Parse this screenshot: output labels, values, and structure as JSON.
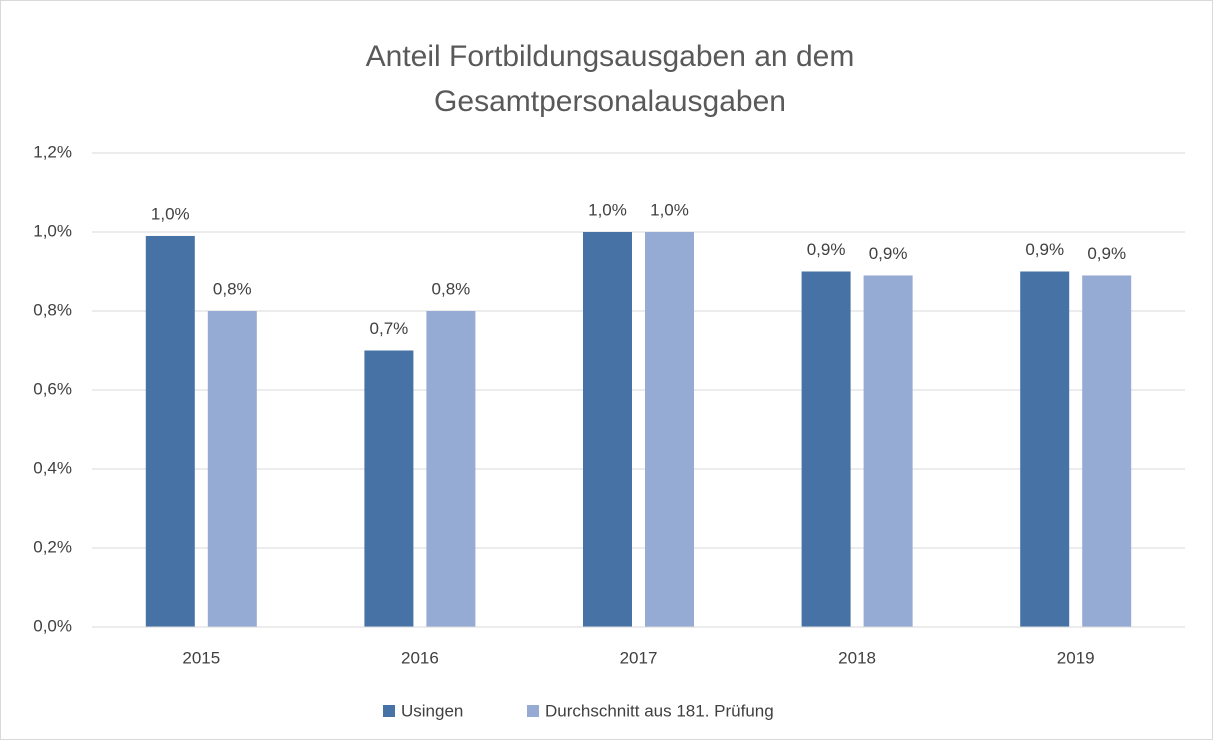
{
  "chart_data": {
    "type": "bar",
    "title": [
      "Anteil Fortbildungsausgaben an dem",
      "Gesamtpersonalausgaben"
    ],
    "categories": [
      "2015",
      "2016",
      "2017",
      "2018",
      "2019"
    ],
    "series": [
      {
        "name": "Usingen",
        "color": "#4672a6",
        "values": [
          0.99,
          0.7,
          1.0,
          0.9,
          0.9
        ],
        "value_labels": [
          "1,0%",
          "0,7%",
          "1,0%",
          "0,9%",
          "0,9%"
        ]
      },
      {
        "name": "Durchschnitt aus 181. Prüfung",
        "color": "#95abd3",
        "values": [
          0.8,
          0.8,
          1.0,
          0.89,
          0.89
        ],
        "value_labels": [
          "0,8%",
          "0,8%",
          "1,0%",
          "0,9%",
          "0,9%"
        ]
      }
    ],
    "ylim": [
      0,
      1.2
    ],
    "yticks": [
      {
        "value": 0,
        "label": "0,0%"
      },
      {
        "value": 0.2,
        "label": "0,2%"
      },
      {
        "value": 0.4,
        "label": "0,4%"
      },
      {
        "value": 0.6,
        "label": "0,6%"
      },
      {
        "value": 0.8,
        "label": "0,8%"
      },
      {
        "value": 1.0,
        "label": "1,0%"
      },
      {
        "value": 1.2,
        "label": "1,2%"
      }
    ],
    "grid": true,
    "legend": "bottom"
  }
}
